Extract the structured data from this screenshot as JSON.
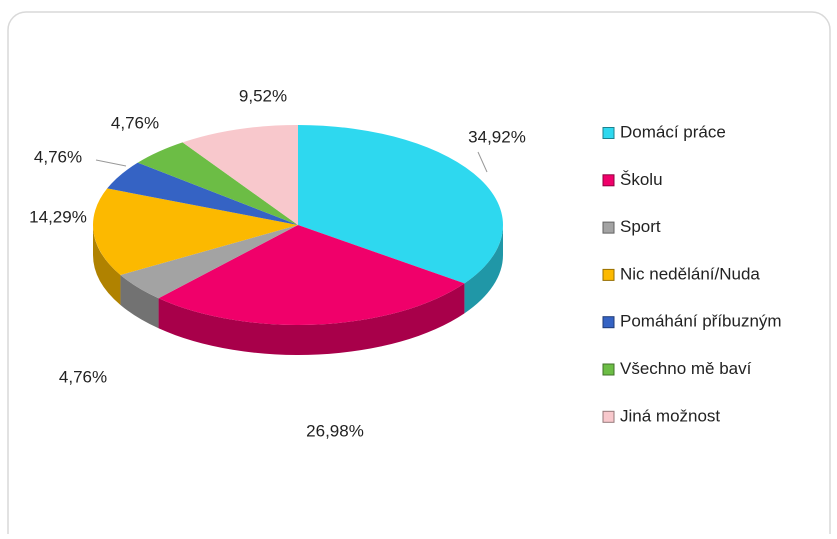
{
  "chart_data": {
    "type": "pie",
    "categories": [
      "Domácí práce",
      "Školu",
      "Sport",
      "Nic nedělání/Nuda",
      "Pomáhání příbuzným",
      "Všechno mě baví",
      "Jiná možnost"
    ],
    "values": [
      34.92,
      26.98,
      4.76,
      14.29,
      4.76,
      4.76,
      9.52
    ],
    "value_labels": [
      "34,92%",
      "26,98%",
      "4,76%",
      "14,29%",
      "4,76%",
      "4,76%",
      "9,52%"
    ],
    "colors": [
      "#2ed8ef",
      "#f0006a",
      "#a3a3a3",
      "#fcb900",
      "#3563c4",
      "#6cbd45",
      "#f8c8cc"
    ]
  }
}
